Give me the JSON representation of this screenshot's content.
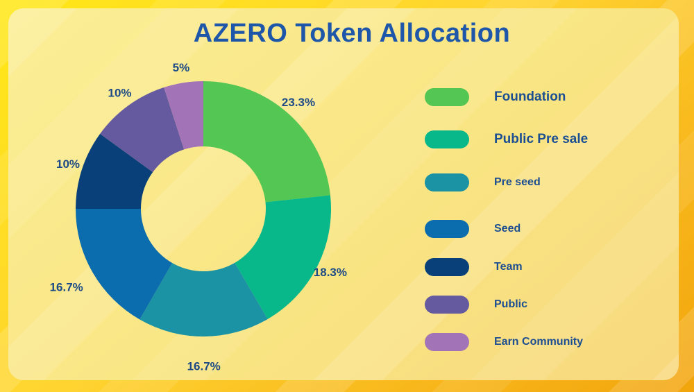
{
  "title": "AZERO Token Allocation",
  "chart_data": {
    "type": "pie",
    "subtype": "donut",
    "title": "AZERO Token Allocation",
    "start_angle_deg": 0,
    "direction": "clockwise",
    "legend_position": "right",
    "grid": false,
    "series": [
      {
        "label": "Foundation",
        "value": 23.3,
        "display": "23.3%",
        "color": "#54c654"
      },
      {
        "label": "Public Pre sale",
        "value": 18.3,
        "display": "18.3%",
        "color": "#08b88b"
      },
      {
        "label": "Pre seed",
        "value": 16.7,
        "display": "16.7%",
        "color": "#1b93a4"
      },
      {
        "label": "Seed",
        "value": 16.7,
        "display": "16.7%",
        "color": "#0b6cae"
      },
      {
        "label": "Team",
        "value": 10,
        "display": "10%",
        "color": "#09407a"
      },
      {
        "label": "Public",
        "value": 10,
        "display": "10%",
        "color": "#655a9f"
      },
      {
        "label": "Earn Community",
        "value": 5,
        "display": "5%",
        "color": "#a273b7"
      }
    ]
  },
  "colors": {
    "title_text": "#1e56a9",
    "value_label_text": "#1d4a86",
    "legend_label_text": "#1c4e92",
    "background_outer_start": "#ffe716",
    "background_outer_end": "#f2a50d",
    "card_background_start": "#fbee96",
    "card_background_end": "#f8d87e"
  }
}
